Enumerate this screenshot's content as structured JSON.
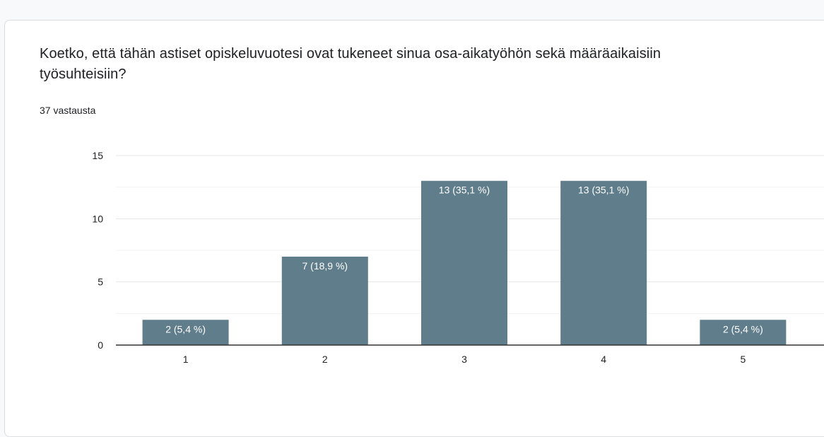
{
  "question": {
    "title": "Koetko, että tähän astiset opiskeluvuotesi ovat tukeneet sinua osa-aikatyöhön sekä määräaikaisiin työsuhteisiin?",
    "response_count": "37 vastausta"
  },
  "colors": {
    "bar": "#607d8b",
    "bar_label": "#ffffff",
    "grid": "#ebebeb",
    "axis": "#333333",
    "text": "#202124"
  },
  "chart_data": {
    "type": "bar",
    "categories": [
      "1",
      "2",
      "3",
      "4",
      "5"
    ],
    "values": [
      2,
      7,
      13,
      13,
      2
    ],
    "data_labels": [
      "2 (5,4 %)",
      "7 (18,9 %)",
      "13 (35,1 %)",
      "13 (35,1 %)",
      "2 (5,4 %)"
    ],
    "y_ticks": [
      0,
      5,
      10,
      15
    ],
    "ylim": [
      0,
      15
    ],
    "title": "",
    "xlabel": "",
    "ylabel": "",
    "grid": true
  }
}
